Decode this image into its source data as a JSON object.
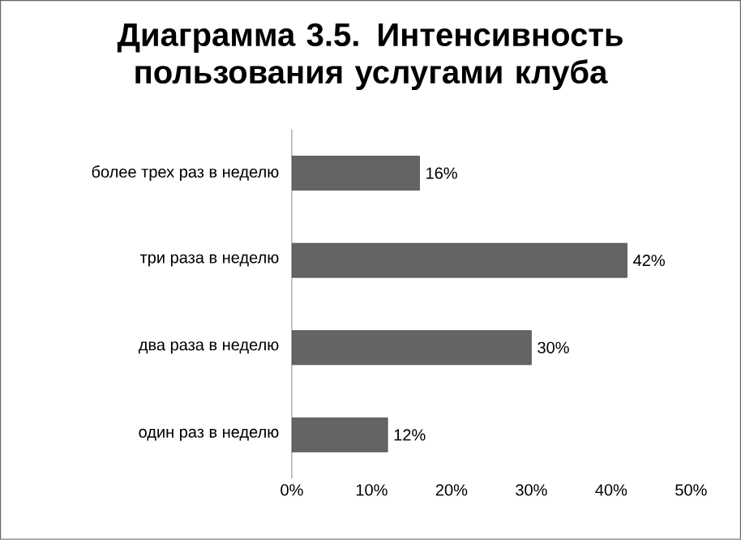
{
  "chart_data": {
    "type": "bar",
    "orientation": "horizontal",
    "title": "Диаграмма 3.5. Интенсивность пользования услугами клуба",
    "categories": [
      "более трех раз в неделю",
      "три раза в неделю",
      "два раза в неделю",
      "один раз в неделю"
    ],
    "values": [
      16,
      42,
      30,
      12
    ],
    "value_labels": [
      "16%",
      "42%",
      "30%",
      "12%"
    ],
    "color": "#646464",
    "xlim": [
      0,
      50
    ],
    "xticks": [
      {
        "value": 0,
        "label": "0%"
      },
      {
        "value": 10,
        "label": "10%"
      },
      {
        "value": 20,
        "label": "20%"
      },
      {
        "value": 30,
        "label": "30%"
      },
      {
        "value": 40,
        "label": "40%"
      },
      {
        "value": 50,
        "label": "50%"
      }
    ],
    "grid": false
  }
}
